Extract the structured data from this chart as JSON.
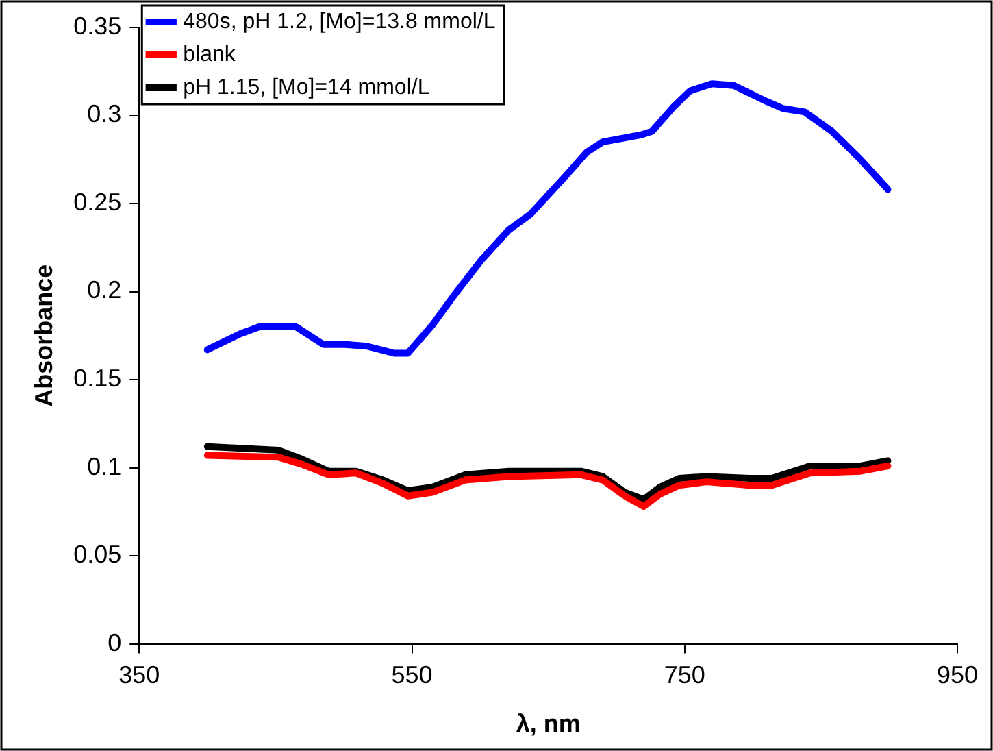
{
  "chart_data": {
    "type": "line",
    "xlabel": "λ, nm",
    "ylabel": "Absorbance",
    "xlim": [
      350,
      950
    ],
    "xticks": [
      350,
      550,
      750,
      950
    ],
    "ylim": [
      0,
      0.35
    ],
    "yticks": [
      0,
      0.05,
      0.1,
      0.15,
      0.2,
      0.25,
      0.3,
      0.35
    ],
    "grid": false,
    "legend": "top left",
    "marker": "none",
    "line_style": "solid",
    "series": [
      {
        "name": "480s, pH 1.2, [Mo]=13.8 mmol/L",
        "color": "#0000ff",
        "x": [
          400,
          424,
          438,
          465,
          485,
          501,
          517,
          537,
          547,
          565,
          581,
          601,
          621,
          637,
          662,
          678,
          690,
          718,
          726,
          742,
          754,
          770,
          786,
          810,
          822,
          838,
          858,
          879,
          899
        ],
        "values": [
          0.167,
          0.176,
          0.18,
          0.18,
          0.17,
          0.17,
          0.169,
          0.165,
          0.165,
          0.181,
          0.198,
          0.218,
          0.235,
          0.244,
          0.265,
          0.279,
          0.285,
          0.289,
          0.291,
          0.305,
          0.314,
          0.318,
          0.317,
          0.308,
          0.304,
          0.302,
          0.291,
          0.275,
          0.258
        ]
      },
      {
        "name": "blank",
        "color": "#ff0000",
        "x": [
          400,
          452,
          469,
          489,
          509,
          529,
          547,
          565,
          589,
          621,
          674,
          690,
          706,
          720,
          732,
          746,
          766,
          798,
          814,
          842,
          879,
          899
        ],
        "values": [
          0.107,
          0.106,
          0.102,
          0.096,
          0.097,
          0.091,
          0.084,
          0.086,
          0.093,
          0.095,
          0.096,
          0.093,
          0.084,
          0.078,
          0.085,
          0.09,
          0.092,
          0.09,
          0.09,
          0.097,
          0.098,
          0.101
        ]
      },
      {
        "name": "pH 1.15, [Mo]=14 mmol/L",
        "color": "#000000",
        "x": [
          400,
          452,
          469,
          489,
          509,
          529,
          547,
          565,
          589,
          621,
          674,
          690,
          706,
          720,
          732,
          746,
          766,
          798,
          814,
          842,
          879,
          899
        ],
        "values": [
          0.112,
          0.11,
          0.105,
          0.098,
          0.098,
          0.093,
          0.087,
          0.089,
          0.096,
          0.098,
          0.098,
          0.095,
          0.086,
          0.082,
          0.089,
          0.094,
          0.095,
          0.094,
          0.094,
          0.101,
          0.101,
          0.104
        ]
      }
    ]
  }
}
